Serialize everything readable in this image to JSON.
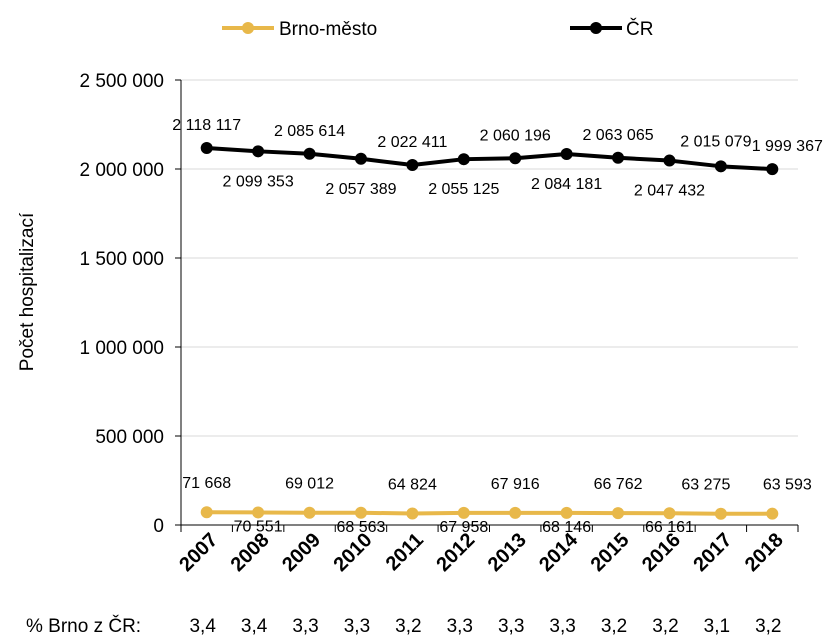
{
  "chart_data": {
    "type": "line",
    "title": "",
    "xlabel": "",
    "ylabel": "Počet hospitalizací",
    "ylim": [
      0,
      2500000
    ],
    "yticks": [
      "0",
      "500 000",
      "1 000 000",
      "1 500 000",
      "2 000 000",
      "2 500 000"
    ],
    "ytick_values": [
      0,
      500000,
      1000000,
      1500000,
      2000000,
      2500000
    ],
    "categories": [
      "2007",
      "2008",
      "2009",
      "2010",
      "2011",
      "2012",
      "2013",
      "2014",
      "2015",
      "2016",
      "2017",
      "2018"
    ],
    "grid": true,
    "legend_position": "top",
    "series": [
      {
        "name": "Brno-město",
        "color": "#E8B84A",
        "values": [
          71668,
          70551,
          69012,
          68563,
          64824,
          67958,
          67916,
          68146,
          66762,
          66161,
          63275,
          63593
        ],
        "labels": [
          "71 668",
          "70 551",
          "69 012",
          "68 563",
          "64 824",
          "67 958",
          "67 916",
          "68 146",
          "66 762",
          "66 161",
          "63 275",
          "63 593"
        ]
      },
      {
        "name": "ČR",
        "color": "#000000",
        "values": [
          2118117,
          2099353,
          2085614,
          2057389,
          2022411,
          2055125,
          2060196,
          2084181,
          2063065,
          2047432,
          2015079,
          1999367
        ],
        "labels": [
          "2 118 117",
          "2 099 353",
          "2 085 614",
          "2 057 389",
          "2 022 411",
          "2 055 125",
          "2 060 196",
          "2 084 181",
          "2 063 065",
          "2 047 432",
          "2 015 079",
          "1 999 367"
        ]
      }
    ],
    "ratio_row": {
      "label": "% Brno z ČR:",
      "values": [
        "3,4",
        "3,4",
        "3,3",
        "3,3",
        "3,2",
        "3,3",
        "3,3",
        "3,3",
        "3,2",
        "3,2",
        "3,1",
        "3,2"
      ]
    }
  }
}
